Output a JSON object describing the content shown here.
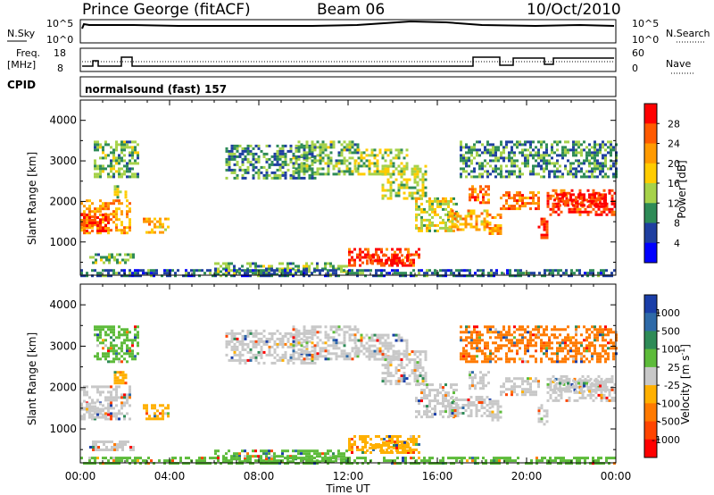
{
  "header": {
    "radar": "Prince George (fitACF)",
    "beam": "Beam 06",
    "date": "10/Oct/2010"
  },
  "strips": {
    "nsky_label": "N.Sky",
    "nsky_ticks": [
      "10^5",
      "10^0"
    ],
    "nsearch_label": "N.Search",
    "nsearch_ticks": [
      "10^5",
      "10^0"
    ],
    "freq_label_1": "Freq.",
    "freq_label_2": "[MHz]",
    "freq_ticks": [
      "18",
      "8"
    ],
    "nave_label": "Nave",
    "nave_ticks": [
      "60",
      "0"
    ],
    "cpid_label": "CPID",
    "cpid_text": "normalsound (fast) 157"
  },
  "chart_data": [
    {
      "type": "heatmap",
      "name": "power-panel",
      "ylabel": "Slant Range [km]",
      "yticks": [
        1000,
        2000,
        3000,
        4000
      ],
      "ylim": [
        180,
        4500
      ],
      "xlim_hours": [
        0,
        24
      ],
      "colorbar": {
        "label": "Power [dB]",
        "ticks": [
          "28",
          "24",
          "20",
          "16",
          "12",
          "8",
          "4"
        ],
        "colors": [
          "#ff0000",
          "#ff5a00",
          "#ff9a00",
          "#ffcc00",
          "#a6d24a",
          "#2e8b57",
          "#1f3fa0",
          "#0000ff"
        ]
      }
    },
    {
      "type": "heatmap",
      "name": "velocity-panel",
      "ylabel": "Slant Range [km]",
      "yticks": [
        1000,
        2000,
        3000,
        4000
      ],
      "ylim": [
        180,
        4500
      ],
      "xlim_hours": [
        0,
        24
      ],
      "colorbar": {
        "label": "Velocity  [m s",
        "label_sup": "-1",
        "label_end": "]",
        "ticks": [
          "1000",
          "500",
          "100",
          "25",
          "-25",
          "-100",
          "-500",
          "-1000"
        ],
        "colors": [
          "#1a3ea8",
          "#2e6aa8",
          "#2e8b57",
          "#5dbb3a",
          "#c8c8c8",
          "#ffb000",
          "#ff7a00",
          "#ff4500",
          "#ff0000"
        ]
      }
    }
  ],
  "xaxis": {
    "ticks": [
      "00:00",
      "04:00",
      "08:00",
      "12:00",
      "16:00",
      "20:00",
      "00:00"
    ],
    "label": "Time UT"
  },
  "echo_bands": [
    {
      "t0": 0.0,
      "t1": 2.2,
      "r0": 1250,
      "r1": 2050,
      "p": 20,
      "v": "-25"
    },
    {
      "t0": 0.0,
      "t1": 1.3,
      "r0": 1300,
      "r1": 1700,
      "p": 26,
      "v": "-25"
    },
    {
      "t0": 0.6,
      "t1": 2.6,
      "r0": 2600,
      "r1": 3500,
      "p": 10,
      "v": "25"
    },
    {
      "t0": 1.5,
      "t1": 2.0,
      "r0": 2100,
      "r1": 2400,
      "p": 14,
      "v": "-100"
    },
    {
      "t0": 2.8,
      "t1": 4.0,
      "r0": 1250,
      "r1": 1600,
      "p": 18,
      "v": "-100"
    },
    {
      "t0": 0.4,
      "t1": 2.4,
      "r0": 520,
      "r1": 720,
      "p": 10,
      "v": "-25"
    },
    {
      "t0": 6.5,
      "t1": 10.5,
      "r0": 2600,
      "r1": 3400,
      "p": 8,
      "v": "-25"
    },
    {
      "t0": 9.5,
      "t1": 12.5,
      "r0": 2700,
      "r1": 3500,
      "p": 10,
      "v": "-25"
    },
    {
      "t0": 12.3,
      "t1": 14.6,
      "r0": 2700,
      "r1": 3300,
      "p": 12,
      "v": "-25"
    },
    {
      "t0": 13.5,
      "t1": 15.5,
      "r0": 2100,
      "r1": 2900,
      "p": 13,
      "v": "-25"
    },
    {
      "t0": 15.0,
      "t1": 16.8,
      "r0": 1300,
      "r1": 2100,
      "p": 14,
      "v": "-25"
    },
    {
      "t0": 16.5,
      "t1": 18.4,
      "r0": 1300,
      "r1": 1800,
      "p": 18,
      "v": "-25"
    },
    {
      "t0": 17.4,
      "t1": 18.3,
      "r0": 2000,
      "r1": 2400,
      "p": 22,
      "v": "-25"
    },
    {
      "t0": 18.3,
      "t1": 18.9,
      "r0": 1200,
      "r1": 1700,
      "p": 20,
      "v": "-25"
    },
    {
      "t0": 18.8,
      "t1": 20.6,
      "r0": 1850,
      "r1": 2250,
      "p": 22,
      "v": "-25"
    },
    {
      "t0": 20.5,
      "t1": 20.9,
      "r0": 1100,
      "r1": 1600,
      "p": 26,
      "v": "-25"
    },
    {
      "t0": 20.9,
      "t1": 24.0,
      "r0": 1700,
      "r1": 2300,
      "p": 26,
      "v": "-25"
    },
    {
      "t0": 21.2,
      "t1": 23.5,
      "r0": 1900,
      "r1": 2200,
      "p": 28,
      "v": "-25"
    },
    {
      "t0": 17.0,
      "t1": 24.0,
      "r0": 2600,
      "r1": 3500,
      "p": 8,
      "v": "-500"
    },
    {
      "t0": 12.0,
      "t1": 15.2,
      "r0": 450,
      "r1": 850,
      "p": 26,
      "v": "-100"
    },
    {
      "t0": 12.8,
      "t1": 14.8,
      "r0": 500,
      "r1": 700,
      "p": 28,
      "v": "-100"
    },
    {
      "t0": 6.0,
      "t1": 12.0,
      "r0": 200,
      "r1": 500,
      "p": 10,
      "v": "25"
    },
    {
      "t0": 0.0,
      "t1": 24.0,
      "r0": 180,
      "r1": 330,
      "p": 6,
      "v": "25"
    }
  ]
}
